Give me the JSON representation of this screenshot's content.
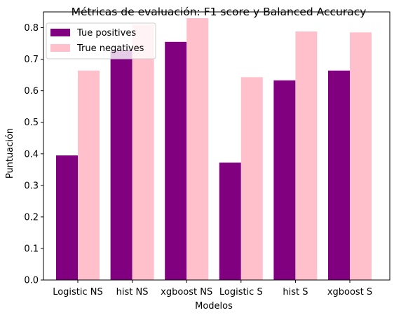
{
  "chart_data": {
    "type": "bar",
    "title": "Métricas de evaluación: F1 score y Balanced Accuracy",
    "xlabel": "Modelos",
    "ylabel": "Puntuación",
    "categories": [
      "Logistic NS",
      "hist NS",
      "xgboost NS",
      "Logistic S",
      "hist S",
      "xgboost S"
    ],
    "series": [
      {
        "name": "Tue positives",
        "color": "#800080",
        "values": [
          0.395,
          0.73,
          0.755,
          0.372,
          0.633,
          0.664
        ]
      },
      {
        "name": "True negatives",
        "color": "#FFC0CB",
        "values": [
          0.664,
          0.81,
          0.83,
          0.643,
          0.788,
          0.785
        ]
      }
    ],
    "ylim": [
      0,
      0.85
    ],
    "yticks": [
      "0.0",
      "0.1",
      "0.2",
      "0.3",
      "0.4",
      "0.5",
      "0.6",
      "0.7",
      "0.8"
    ],
    "grid": false,
    "legend_position": "top-left"
  }
}
